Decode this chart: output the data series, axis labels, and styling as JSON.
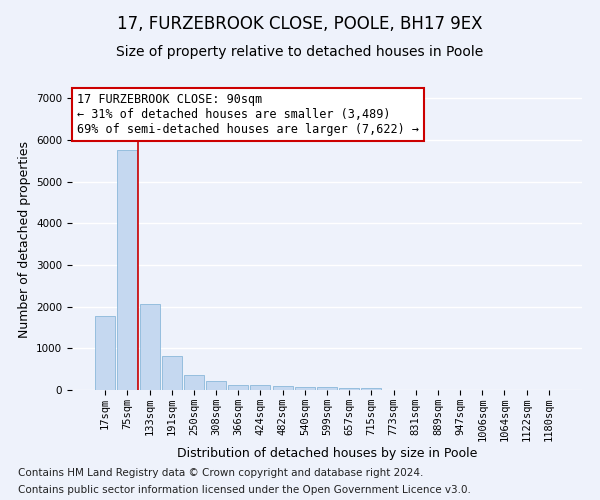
{
  "title": "17, FURZEBROOK CLOSE, POOLE, BH17 9EX",
  "subtitle": "Size of property relative to detached houses in Poole",
  "xlabel": "Distribution of detached houses by size in Poole",
  "ylabel": "Number of detached properties",
  "categories": [
    "17sqm",
    "75sqm",
    "133sqm",
    "191sqm",
    "250sqm",
    "308sqm",
    "366sqm",
    "424sqm",
    "482sqm",
    "540sqm",
    "599sqm",
    "657sqm",
    "715sqm",
    "773sqm",
    "831sqm",
    "889sqm",
    "947sqm",
    "1006sqm",
    "1064sqm",
    "1122sqm",
    "1180sqm"
  ],
  "values": [
    1780,
    5750,
    2060,
    820,
    360,
    210,
    130,
    110,
    100,
    80,
    65,
    55,
    50,
    0,
    0,
    0,
    0,
    0,
    0,
    0,
    0
  ],
  "bar_color": "#c5d8f0",
  "bar_edge_color": "#7bafd4",
  "annotation_text": "17 FURZEBROOK CLOSE: 90sqm\n← 31% of detached houses are smaller (3,489)\n69% of semi-detached houses are larger (7,622) →",
  "annotation_box_color": "#ffffff",
  "annotation_box_edge_color": "#cc0000",
  "red_line_x": 1.5,
  "ylim": [
    0,
    7200
  ],
  "yticks": [
    0,
    1000,
    2000,
    3000,
    4000,
    5000,
    6000,
    7000
  ],
  "background_color": "#eef2fb",
  "axes_background": "#eef2fb",
  "grid_color": "#ffffff",
  "footer_line1": "Contains HM Land Registry data © Crown copyright and database right 2024.",
  "footer_line2": "Contains public sector information licensed under the Open Government Licence v3.0.",
  "title_fontsize": 12,
  "subtitle_fontsize": 10,
  "axis_label_fontsize": 9,
  "tick_fontsize": 7.5,
  "annotation_fontsize": 8.5,
  "footer_fontsize": 7.5
}
